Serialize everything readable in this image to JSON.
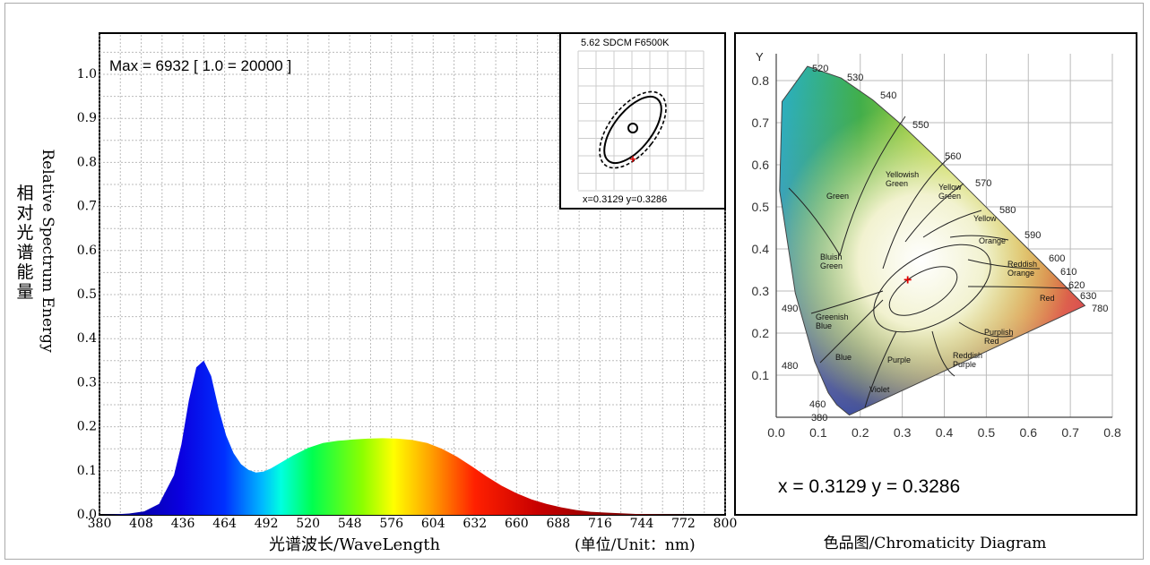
{
  "spectrum": {
    "annotation": "Max = 6932  [ 1.0 = 20000 ]",
    "ylabel_en": "Relative Spectrum Energy",
    "ylabel_cn": "相对光谱能量",
    "xlabel": "光谱波长/WaveLength",
    "unit_label": "(单位/Unit：nm)",
    "y_ticks": [
      "0.0",
      "0.1",
      "0.2",
      "0.3",
      "0.4",
      "0.5",
      "0.6",
      "0.7",
      "0.8",
      "0.9",
      "1.0"
    ],
    "x_ticks": [
      "380",
      "408",
      "436",
      "464",
      "492",
      "520",
      "548",
      "576",
      "604",
      "632",
      "660",
      "688",
      "716",
      "744",
      "772",
      "800"
    ]
  },
  "chart_data": {
    "type": "area",
    "x": [
      380,
      390,
      400,
      410,
      420,
      430,
      435,
      440,
      445,
      450,
      455,
      460,
      465,
      470,
      475,
      480,
      485,
      490,
      495,
      500,
      510,
      520,
      530,
      540,
      550,
      560,
      570,
      580,
      590,
      600,
      610,
      620,
      630,
      640,
      650,
      660,
      670,
      680,
      690,
      700,
      710,
      720,
      740,
      760,
      780,
      800
    ],
    "values": [
      0.0,
      0.001,
      0.003,
      0.008,
      0.025,
      0.09,
      0.16,
      0.26,
      0.335,
      0.35,
      0.315,
      0.24,
      0.18,
      0.14,
      0.115,
      0.102,
      0.096,
      0.098,
      0.105,
      0.115,
      0.135,
      0.152,
      0.163,
      0.168,
      0.171,
      0.173,
      0.174,
      0.173,
      0.17,
      0.163,
      0.15,
      0.132,
      0.11,
      0.087,
      0.066,
      0.049,
      0.035,
      0.025,
      0.017,
      0.011,
      0.007,
      0.005,
      0.002,
      0.001,
      0.0,
      0.0
    ],
    "xlim": [
      380,
      800
    ],
    "ylim": [
      0,
      1.0
    ],
    "grid": true,
    "xlabel": "光谱波长/WaveLength",
    "ylabel": "Relative Spectrum Energy"
  },
  "inset": {
    "title": "5.62 SDCM  F6500K",
    "coords": "x=0.3129  y=0.3286"
  },
  "cie": {
    "y_axis": "Y",
    "y_ticks": [
      "0.1",
      "0.2",
      "0.3",
      "0.4",
      "0.5",
      "0.6",
      "0.7",
      "0.8"
    ],
    "x_ticks": [
      "0.0",
      "0.1",
      "0.2",
      "0.3",
      "0.4",
      "0.5",
      "0.6",
      "0.7",
      "0.8"
    ],
    "wavelengths": [
      "520",
      "530",
      "540",
      "550",
      "560",
      "570",
      "580",
      "590",
      "600",
      "610",
      "620",
      "630",
      "780",
      "490",
      "480",
      "460",
      "380"
    ],
    "regions": [
      "Green",
      "Yellowish Green",
      "Yellow Green",
      "Yellow",
      "Orange",
      "Reddish Orange",
      "Red",
      "Bluish Green",
      "Greenish Blue",
      "Blue",
      "Violet",
      "Purple",
      "Reddish Purple",
      "Purplish Red"
    ],
    "point": {
      "x": 0.3129,
      "y": 0.3286
    },
    "coords_label": "x = 0.3129   y = 0.3286",
    "caption": "色品图/Chromaticity Diagram"
  }
}
